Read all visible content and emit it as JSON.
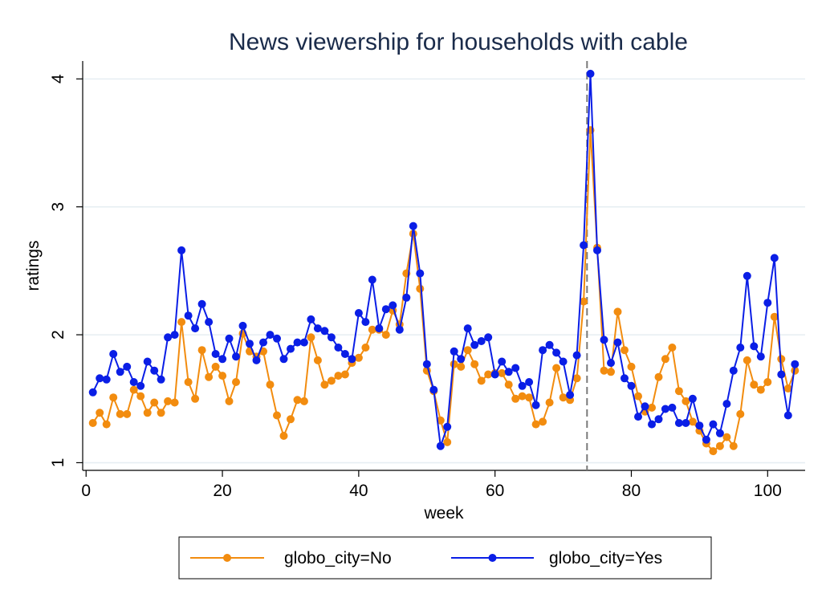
{
  "chart_data": {
    "type": "line",
    "title": "News viewership for households with cable",
    "xlabel": "week",
    "ylabel": "ratings",
    "xlim": [
      -0.5,
      105.5
    ],
    "ylim": [
      0.94,
      4.14
    ],
    "xticks": [
      0,
      20,
      40,
      60,
      80,
      100
    ],
    "yticks": [
      1,
      2,
      3,
      4
    ],
    "grid": true,
    "reference_line_x": 73.5,
    "legend_position": "bottom",
    "series": [
      {
        "name": "globo_city=No",
        "color": "#f28c0f",
        "x": [
          1,
          2,
          3,
          4,
          5,
          6,
          7,
          8,
          9,
          10,
          11,
          12,
          13,
          14,
          15,
          16,
          17,
          18,
          19,
          20,
          21,
          22,
          23,
          24,
          25,
          26,
          27,
          28,
          29,
          30,
          31,
          32,
          33,
          34,
          35,
          36,
          37,
          38,
          39,
          40,
          41,
          42,
          43,
          44,
          45,
          46,
          47,
          48,
          49,
          50,
          51,
          52,
          53,
          54,
          55,
          56,
          57,
          58,
          59,
          60,
          61,
          62,
          63,
          64,
          65,
          66,
          67,
          68,
          69,
          70,
          71,
          72,
          73,
          74,
          75,
          76,
          77,
          78,
          79,
          80,
          81,
          82,
          83,
          84,
          85,
          86,
          87,
          88,
          89,
          90,
          91,
          92,
          93,
          94,
          95,
          96,
          97,
          98,
          99,
          100,
          101,
          102,
          103,
          104
        ],
        "values": [
          1.31,
          1.39,
          1.3,
          1.51,
          1.38,
          1.38,
          1.57,
          1.52,
          1.39,
          1.47,
          1.39,
          1.48,
          1.47,
          2.1,
          1.63,
          1.5,
          1.88,
          1.67,
          1.75,
          1.68,
          1.48,
          1.63,
          2.01,
          1.87,
          1.83,
          1.87,
          1.61,
          1.37,
          1.21,
          1.34,
          1.49,
          1.48,
          1.98,
          1.8,
          1.61,
          1.64,
          1.68,
          1.69,
          1.78,
          1.82,
          1.9,
          2.04,
          2.04,
          2.0,
          2.19,
          2.08,
          2.48,
          2.79,
          2.36,
          1.72,
          1.56,
          1.33,
          1.16,
          1.77,
          1.75,
          1.88,
          1.77,
          1.64,
          1.69,
          1.7,
          1.7,
          1.61,
          1.5,
          1.52,
          1.51,
          1.3,
          1.32,
          1.47,
          1.74,
          1.51,
          1.49,
          1.66,
          2.26,
          3.6,
          2.68,
          1.72,
          1.71,
          2.18,
          1.88,
          1.75,
          1.52,
          1.4,
          1.43,
          1.67,
          1.81,
          1.9,
          1.56,
          1.48,
          1.32,
          1.25,
          1.15,
          1.09,
          1.13,
          1.2,
          1.13,
          1.38,
          1.8,
          1.61,
          1.57,
          1.63,
          2.14,
          1.81,
          1.58,
          1.72
        ]
      },
      {
        "name": "globo_city=Yes",
        "color": "#0a1ee6",
        "x": [
          1,
          2,
          3,
          4,
          5,
          6,
          7,
          8,
          9,
          10,
          11,
          12,
          13,
          14,
          15,
          16,
          17,
          18,
          19,
          20,
          21,
          22,
          23,
          24,
          25,
          26,
          27,
          28,
          29,
          30,
          31,
          32,
          33,
          34,
          35,
          36,
          37,
          38,
          39,
          40,
          41,
          42,
          43,
          44,
          45,
          46,
          47,
          48,
          49,
          50,
          51,
          52,
          53,
          54,
          55,
          56,
          57,
          58,
          59,
          60,
          61,
          62,
          63,
          64,
          65,
          66,
          67,
          68,
          69,
          70,
          71,
          72,
          73,
          74,
          75,
          76,
          77,
          78,
          79,
          80,
          81,
          82,
          83,
          84,
          85,
          86,
          87,
          88,
          89,
          90,
          91,
          92,
          93,
          94,
          95,
          96,
          97,
          98,
          99,
          100,
          101,
          102,
          103,
          104
        ],
        "values": [
          1.55,
          1.66,
          1.65,
          1.85,
          1.71,
          1.75,
          1.63,
          1.6,
          1.79,
          1.72,
          1.65,
          1.98,
          2.0,
          2.66,
          2.15,
          2.05,
          2.24,
          2.1,
          1.85,
          1.81,
          1.97,
          1.83,
          2.07,
          1.93,
          1.8,
          1.94,
          2.0,
          1.97,
          1.81,
          1.89,
          1.94,
          1.94,
          2.12,
          2.05,
          2.03,
          1.98,
          1.9,
          1.85,
          1.81,
          2.17,
          2.1,
          2.43,
          2.05,
          2.2,
          2.23,
          2.04,
          2.29,
          2.85,
          2.48,
          1.77,
          1.57,
          1.13,
          1.28,
          1.87,
          1.81,
          2.05,
          1.92,
          1.95,
          1.98,
          1.69,
          1.79,
          1.71,
          1.74,
          1.6,
          1.63,
          1.45,
          1.88,
          1.92,
          1.86,
          1.79,
          1.53,
          1.84,
          2.7,
          4.04,
          2.66,
          1.96,
          1.78,
          1.94,
          1.66,
          1.6,
          1.36,
          1.44,
          1.3,
          1.34,
          1.42,
          1.43,
          1.31,
          1.31,
          1.5,
          1.29,
          1.18,
          1.3,
          1.23,
          1.46,
          1.72,
          1.9,
          2.46,
          1.91,
          1.83,
          2.25,
          2.6,
          1.69,
          1.37,
          1.77
        ]
      }
    ]
  }
}
